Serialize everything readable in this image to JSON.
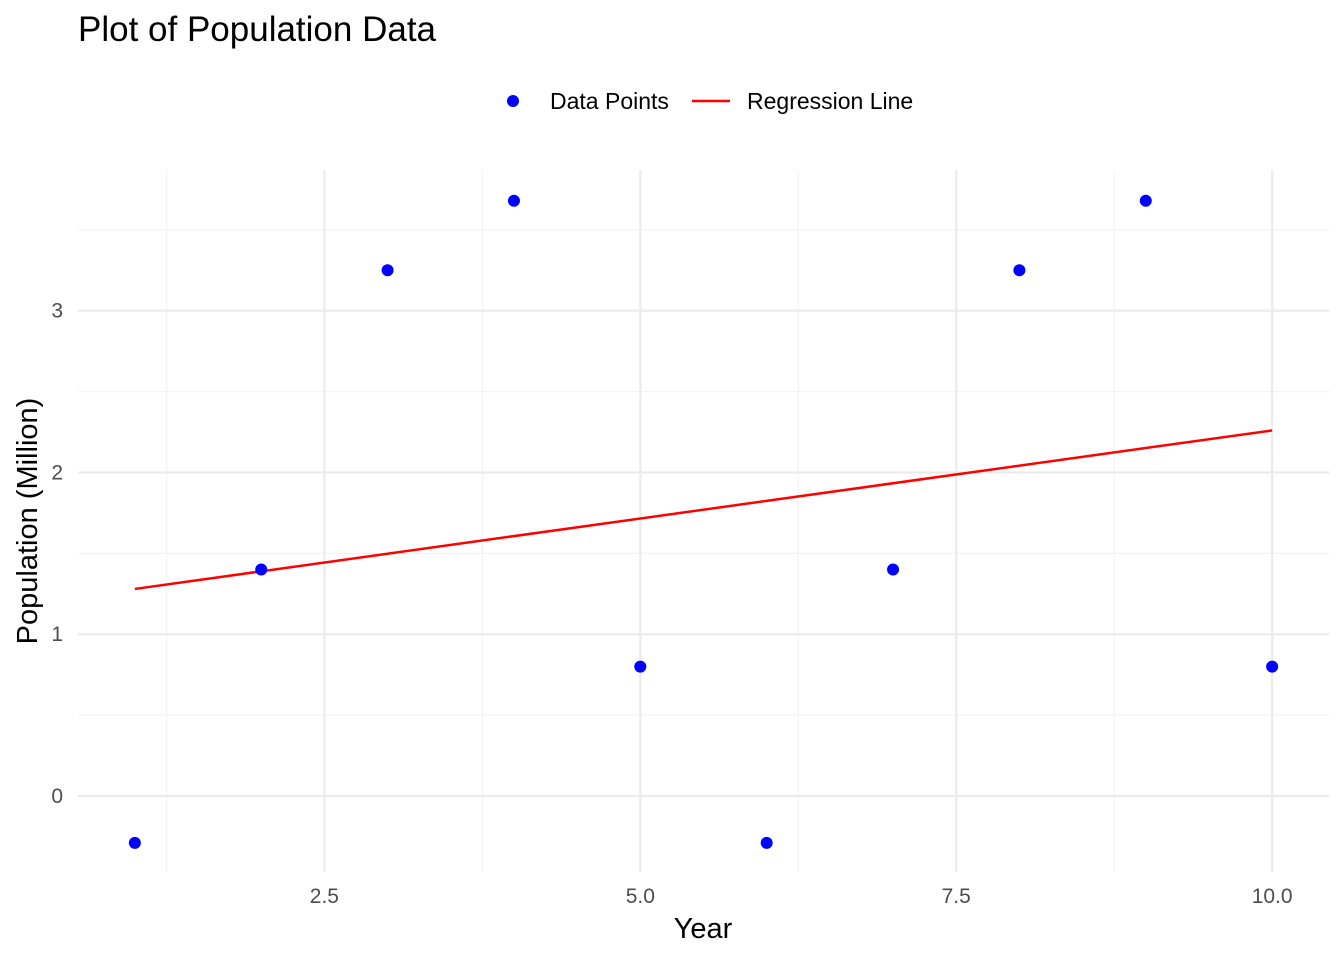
{
  "chart_data": {
    "type": "scatter",
    "title": "Plot of Population Data",
    "xlabel": "Year",
    "ylabel": "Population (Million)",
    "xlim": [
      0.55,
      10.45
    ],
    "ylim": [
      -0.47,
      3.87
    ],
    "x_ticks": [
      2.5,
      5.0,
      7.5,
      10.0
    ],
    "x_tick_labels": [
      "2.5",
      "5.0",
      "7.5",
      "10.0"
    ],
    "y_ticks": [
      0,
      1,
      2,
      3
    ],
    "y_tick_labels": [
      "0",
      "1",
      "2",
      "3"
    ],
    "grid": true,
    "legend_position": "top",
    "series": [
      {
        "name": "Data Points",
        "kind": "points",
        "color": "#0000ff",
        "x": [
          1,
          2,
          3,
          4,
          5,
          6,
          7,
          8,
          9,
          10
        ],
        "y": [
          -0.29,
          1.4,
          3.25,
          3.68,
          0.8,
          -0.29,
          1.4,
          3.25,
          3.68,
          0.8
        ]
      },
      {
        "name": "Regression Line",
        "kind": "line",
        "color": "#ff0000",
        "x": [
          1,
          10
        ],
        "y": [
          1.28,
          2.26
        ]
      }
    ]
  }
}
